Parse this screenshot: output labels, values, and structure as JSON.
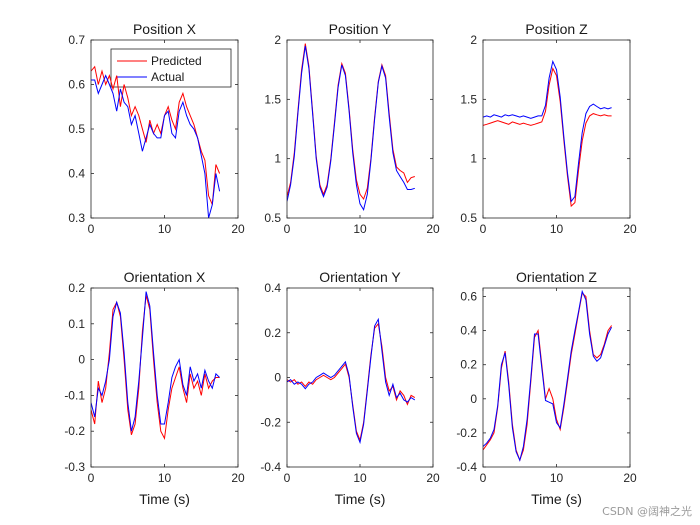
{
  "colors": {
    "predicted": "#ff0000",
    "actual": "#0000ff",
    "axis": "#262626"
  },
  "watermark": "CSDN @阔神之光",
  "chart_data": [
    {
      "type": "line",
      "title": "Position X",
      "xlabel": "",
      "xlim": [
        0,
        20
      ],
      "ylim": [
        0.3,
        0.7
      ],
      "xticks": [
        0,
        10,
        20
      ],
      "yticks": [
        0.3,
        0.4,
        0.5,
        0.6,
        0.7
      ],
      "ytick_labels": [
        "0.3",
        "0.4",
        "0.5",
        "0.6",
        "0.7"
      ],
      "legend": {
        "location": "top-right",
        "entries": [
          "Predicted",
          "Actual"
        ]
      },
      "series": [
        {
          "name": "Predicted",
          "color": "#ff0000",
          "x": [
            0,
            0.5,
            1,
            1.5,
            2,
            2.5,
            3,
            3.5,
            4,
            4.5,
            5,
            5.5,
            6,
            6.5,
            7,
            7.5,
            8,
            8.5,
            9,
            9.5,
            10,
            10.5,
            11,
            11.5,
            12,
            12.5,
            13,
            13.5,
            14,
            14.5,
            15,
            15.5,
            16,
            16.5,
            17,
            17.5
          ],
          "y": [
            0.63,
            0.64,
            0.6,
            0.63,
            0.6,
            0.62,
            0.59,
            0.62,
            0.55,
            0.6,
            0.57,
            0.53,
            0.55,
            0.53,
            0.5,
            0.47,
            0.52,
            0.49,
            0.51,
            0.49,
            0.53,
            0.55,
            0.52,
            0.5,
            0.56,
            0.58,
            0.55,
            0.53,
            0.51,
            0.48,
            0.45,
            0.43,
            0.35,
            0.33,
            0.42,
            0.4
          ]
        },
        {
          "name": "Actual",
          "color": "#0000ff",
          "x": [
            0,
            0.5,
            1,
            1.5,
            2,
            2.5,
            3,
            3.5,
            4,
            4.5,
            5,
            5.5,
            6,
            6.5,
            7,
            7.5,
            8,
            8.5,
            9,
            9.5,
            10,
            10.5,
            11,
            11.5,
            12,
            12.5,
            13,
            13.5,
            14,
            14.5,
            15,
            15.5,
            16,
            16.5,
            17,
            17.5
          ],
          "y": [
            0.61,
            0.61,
            0.58,
            0.6,
            0.62,
            0.6,
            0.58,
            0.54,
            0.59,
            0.56,
            0.55,
            0.51,
            0.53,
            0.49,
            0.45,
            0.48,
            0.51,
            0.49,
            0.48,
            0.48,
            0.53,
            0.54,
            0.49,
            0.48,
            0.54,
            0.56,
            0.53,
            0.51,
            0.5,
            0.48,
            0.44,
            0.4,
            0.3,
            0.33,
            0.4,
            0.36
          ]
        }
      ]
    },
    {
      "type": "line",
      "title": "Position Y",
      "xlabel": "",
      "xlim": [
        0,
        20
      ],
      "ylim": [
        0.5,
        2
      ],
      "xticks": [
        0,
        10,
        20
      ],
      "yticks": [
        0.5,
        1,
        1.5,
        2
      ],
      "ytick_labels": [
        "0.5",
        "1",
        "1.5",
        "2"
      ],
      "series": [
        {
          "name": "Predicted",
          "color": "#ff0000",
          "x": [
            0,
            0.5,
            1,
            1.5,
            2,
            2.5,
            3,
            3.5,
            4,
            4.5,
            5,
            5.5,
            6,
            6.5,
            7,
            7.5,
            8,
            8.5,
            9,
            9.5,
            10,
            10.5,
            11,
            11.5,
            12,
            12.5,
            13,
            13.5,
            14,
            14.5,
            15,
            15.5,
            16,
            16.5,
            17,
            17.5
          ],
          "y": [
            0.68,
            0.8,
            1.05,
            1.4,
            1.75,
            1.97,
            1.78,
            1.4,
            1.02,
            0.78,
            0.7,
            0.78,
            1.0,
            1.3,
            1.62,
            1.8,
            1.72,
            1.42,
            1.08,
            0.82,
            0.7,
            0.66,
            0.75,
            1.0,
            1.35,
            1.65,
            1.79,
            1.7,
            1.38,
            1.08,
            0.93,
            0.9,
            0.88,
            0.8,
            0.84,
            0.85
          ]
        },
        {
          "name": "Actual",
          "color": "#0000ff",
          "x": [
            0,
            0.5,
            1,
            1.5,
            2,
            2.5,
            3,
            3.5,
            4,
            4.5,
            5,
            5.5,
            6,
            6.5,
            7,
            7.5,
            8,
            8.5,
            9,
            9.5,
            10,
            10.5,
            11,
            11.5,
            12,
            12.5,
            13,
            13.5,
            14,
            14.5,
            15,
            15.5,
            16,
            16.5,
            17,
            17.5
          ],
          "y": [
            0.64,
            0.78,
            1.02,
            1.38,
            1.72,
            1.95,
            1.76,
            1.38,
            1.0,
            0.76,
            0.68,
            0.76,
            0.98,
            1.28,
            1.6,
            1.79,
            1.7,
            1.4,
            1.05,
            0.78,
            0.62,
            0.57,
            0.7,
            0.98,
            1.33,
            1.64,
            1.78,
            1.68,
            1.35,
            1.05,
            0.9,
            0.85,
            0.8,
            0.74,
            0.74,
            0.75
          ]
        }
      ]
    },
    {
      "type": "line",
      "title": "Position Z",
      "xlabel": "",
      "xlim": [
        0,
        20
      ],
      "ylim": [
        0.5,
        2
      ],
      "xticks": [
        0,
        10,
        20
      ],
      "yticks": [
        0.5,
        1,
        1.5,
        2
      ],
      "ytick_labels": [
        "0.5",
        "1",
        "1.5",
        "2"
      ],
      "series": [
        {
          "name": "Predicted",
          "color": "#ff0000",
          "x": [
            0,
            0.5,
            1,
            1.5,
            2,
            2.5,
            3,
            3.5,
            4,
            4.5,
            5,
            5.5,
            6,
            6.5,
            7,
            7.5,
            8,
            8.5,
            9,
            9.5,
            10,
            10.5,
            11,
            11.5,
            12,
            12.5,
            13,
            13.5,
            14,
            14.5,
            15,
            15.5,
            16,
            16.5,
            17,
            17.5
          ],
          "y": [
            1.28,
            1.29,
            1.3,
            1.31,
            1.32,
            1.31,
            1.3,
            1.29,
            1.31,
            1.3,
            1.29,
            1.3,
            1.29,
            1.28,
            1.29,
            1.3,
            1.31,
            1.4,
            1.62,
            1.76,
            1.7,
            1.48,
            1.15,
            0.85,
            0.6,
            0.63,
            0.9,
            1.15,
            1.3,
            1.36,
            1.38,
            1.37,
            1.36,
            1.37,
            1.36,
            1.36
          ]
        },
        {
          "name": "Actual",
          "color": "#0000ff",
          "x": [
            0,
            0.5,
            1,
            1.5,
            2,
            2.5,
            3,
            3.5,
            4,
            4.5,
            5,
            5.5,
            6,
            6.5,
            7,
            7.5,
            8,
            8.5,
            9,
            9.5,
            10,
            10.5,
            11,
            11.5,
            12,
            12.5,
            13,
            13.5,
            14,
            14.5,
            15,
            15.5,
            16,
            16.5,
            17,
            17.5
          ],
          "y": [
            1.35,
            1.36,
            1.35,
            1.37,
            1.36,
            1.35,
            1.37,
            1.36,
            1.37,
            1.36,
            1.35,
            1.36,
            1.35,
            1.34,
            1.35,
            1.36,
            1.36,
            1.45,
            1.68,
            1.82,
            1.75,
            1.52,
            1.18,
            0.88,
            0.64,
            0.68,
            0.96,
            1.22,
            1.38,
            1.44,
            1.46,
            1.44,
            1.42,
            1.43,
            1.42,
            1.43
          ]
        }
      ]
    },
    {
      "type": "line",
      "title": "Orientation X",
      "xlabel": "Time (s)",
      "xlim": [
        0,
        20
      ],
      "ylim": [
        -0.3,
        0.2
      ],
      "xticks": [
        0,
        10,
        20
      ],
      "yticks": [
        -0.3,
        -0.2,
        -0.1,
        0,
        0.1,
        0.2
      ],
      "ytick_labels": [
        "-0.3",
        "-0.2",
        "-0.1",
        "0",
        "0.1",
        "0.2"
      ],
      "series": [
        {
          "name": "Predicted",
          "color": "#ff0000",
          "x": [
            0,
            0.5,
            1,
            1.5,
            2,
            2.5,
            3,
            3.5,
            4,
            4.5,
            5,
            5.5,
            6,
            6.5,
            7,
            7.5,
            8,
            8.5,
            9,
            9.5,
            10,
            10.5,
            11,
            11.5,
            12,
            12.5,
            13,
            13.5,
            14,
            14.5,
            15,
            15.5,
            16,
            16.5,
            17,
            17.5
          ],
          "y": [
            -0.14,
            -0.18,
            -0.06,
            -0.12,
            -0.08,
            0.02,
            0.14,
            0.16,
            0.12,
            0.0,
            -0.14,
            -0.21,
            -0.18,
            -0.08,
            0.08,
            0.18,
            0.14,
            0.0,
            -0.12,
            -0.2,
            -0.22,
            -0.14,
            -0.08,
            -0.05,
            -0.02,
            -0.08,
            -0.12,
            -0.04,
            -0.08,
            -0.06,
            -0.1,
            -0.04,
            -0.08,
            -0.06,
            -0.05,
            -0.05
          ]
        },
        {
          "name": "Actual",
          "color": "#0000ff",
          "x": [
            0,
            0.5,
            1,
            1.5,
            2,
            2.5,
            3,
            3.5,
            4,
            4.5,
            5,
            5.5,
            6,
            6.5,
            7,
            7.5,
            8,
            8.5,
            9,
            9.5,
            10,
            10.5,
            11,
            11.5,
            12,
            12.5,
            13,
            13.5,
            14,
            14.5,
            15,
            15.5,
            16,
            16.5,
            17,
            17.5
          ],
          "y": [
            -0.12,
            -0.16,
            -0.08,
            -0.1,
            -0.06,
            0.0,
            0.12,
            0.16,
            0.13,
            0.02,
            -0.12,
            -0.2,
            -0.16,
            -0.06,
            0.06,
            0.19,
            0.15,
            0.02,
            -0.1,
            -0.18,
            -0.18,
            -0.12,
            -0.05,
            -0.02,
            0.0,
            -0.07,
            -0.1,
            -0.02,
            -0.06,
            -0.04,
            -0.08,
            -0.03,
            -0.06,
            -0.08,
            -0.04,
            -0.05
          ]
        }
      ]
    },
    {
      "type": "line",
      "title": "Orientation Y",
      "xlabel": "Time (s)",
      "xlim": [
        0,
        20
      ],
      "ylim": [
        -0.4,
        0.4
      ],
      "xticks": [
        0,
        10,
        20
      ],
      "yticks": [
        -0.4,
        -0.2,
        0,
        0.2,
        0.4
      ],
      "ytick_labels": [
        "-0.4",
        "-0.2",
        "0",
        "0.2",
        "0.4"
      ],
      "series": [
        {
          "name": "Predicted",
          "color": "#ff0000",
          "x": [
            0,
            0.5,
            1,
            1.5,
            2,
            2.5,
            3,
            3.5,
            4,
            4.5,
            5,
            5.5,
            6,
            6.5,
            7,
            7.5,
            8,
            8.5,
            9,
            9.5,
            10,
            10.5,
            11,
            11.5,
            12,
            12.5,
            13,
            13.5,
            14,
            14.5,
            15,
            15.5,
            16,
            16.5,
            17,
            17.5
          ],
          "y": [
            -0.01,
            -0.02,
            -0.01,
            -0.03,
            -0.02,
            -0.04,
            -0.02,
            -0.03,
            -0.01,
            0.0,
            0.01,
            0.0,
            -0.01,
            0.0,
            0.02,
            0.04,
            0.06,
            0.0,
            -0.12,
            -0.24,
            -0.28,
            -0.2,
            -0.05,
            0.1,
            0.22,
            0.24,
            0.14,
            0.0,
            -0.06,
            -0.04,
            -0.1,
            -0.06,
            -0.08,
            -0.12,
            -0.08,
            -0.09
          ]
        },
        {
          "name": "Actual",
          "color": "#0000ff",
          "x": [
            0,
            0.5,
            1,
            1.5,
            2,
            2.5,
            3,
            3.5,
            4,
            4.5,
            5,
            5.5,
            6,
            6.5,
            7,
            7.5,
            8,
            8.5,
            9,
            9.5,
            10,
            10.5,
            11,
            11.5,
            12,
            12.5,
            13,
            13.5,
            14,
            14.5,
            15,
            15.5,
            16,
            16.5,
            17,
            17.5
          ],
          "y": [
            -0.02,
            -0.01,
            -0.03,
            -0.02,
            -0.03,
            -0.05,
            -0.03,
            -0.02,
            0.0,
            0.01,
            0.02,
            0.01,
            0.0,
            0.01,
            0.03,
            0.05,
            0.07,
            0.01,
            -0.13,
            -0.25,
            -0.29,
            -0.21,
            -0.06,
            0.09,
            0.23,
            0.26,
            0.12,
            -0.02,
            -0.08,
            -0.03,
            -0.09,
            -0.07,
            -0.1,
            -0.11,
            -0.09,
            -0.1
          ]
        }
      ]
    },
    {
      "type": "line",
      "title": "Orientation Z",
      "xlabel": "Time (s)",
      "xlim": [
        0,
        20
      ],
      "ylim": [
        -0.4,
        0.65
      ],
      "xticks": [
        0,
        10,
        20
      ],
      "yticks": [
        -0.4,
        -0.2,
        0,
        0.2,
        0.4,
        0.6
      ],
      "ytick_labels": [
        "-0.4",
        "-0.2",
        "0",
        "0.2",
        "0.4",
        "0.6"
      ],
      "series": [
        {
          "name": "Predicted",
          "color": "#ff0000",
          "x": [
            0,
            0.5,
            1,
            1.5,
            2,
            2.5,
            3,
            3.5,
            4,
            4.5,
            5,
            5.5,
            6,
            6.5,
            7,
            7.5,
            8,
            8.5,
            9,
            9.5,
            10,
            10.5,
            11,
            11.5,
            12,
            12.5,
            13,
            13.5,
            14,
            14.5,
            15,
            15.5,
            16,
            16.5,
            17,
            17.5
          ],
          "y": [
            -0.3,
            -0.27,
            -0.24,
            -0.2,
            -0.05,
            0.18,
            0.28,
            0.1,
            -0.15,
            -0.3,
            -0.36,
            -0.3,
            -0.15,
            0.1,
            0.36,
            0.4,
            0.2,
            0.0,
            0.06,
            0.0,
            -0.12,
            -0.18,
            -0.05,
            0.1,
            0.26,
            0.38,
            0.5,
            0.62,
            0.6,
            0.4,
            0.26,
            0.24,
            0.26,
            0.32,
            0.4,
            0.43
          ]
        },
        {
          "name": "Actual",
          "color": "#0000ff",
          "x": [
            0,
            0.5,
            1,
            1.5,
            2,
            2.5,
            3,
            3.5,
            4,
            4.5,
            5,
            5.5,
            6,
            6.5,
            7,
            7.5,
            8,
            8.5,
            9,
            9.5,
            10,
            10.5,
            11,
            11.5,
            12,
            12.5,
            13,
            13.5,
            14,
            14.5,
            15,
            15.5,
            16,
            16.5,
            17,
            17.5
          ],
          "y": [
            -0.28,
            -0.26,
            -0.23,
            -0.18,
            -0.04,
            0.2,
            0.27,
            0.08,
            -0.17,
            -0.31,
            -0.36,
            -0.28,
            -0.12,
            0.12,
            0.38,
            0.38,
            0.18,
            -0.01,
            -0.02,
            -0.03,
            -0.14,
            -0.17,
            -0.03,
            0.12,
            0.28,
            0.4,
            0.51,
            0.63,
            0.58,
            0.38,
            0.25,
            0.22,
            0.24,
            0.31,
            0.38,
            0.42
          ]
        }
      ]
    }
  ]
}
